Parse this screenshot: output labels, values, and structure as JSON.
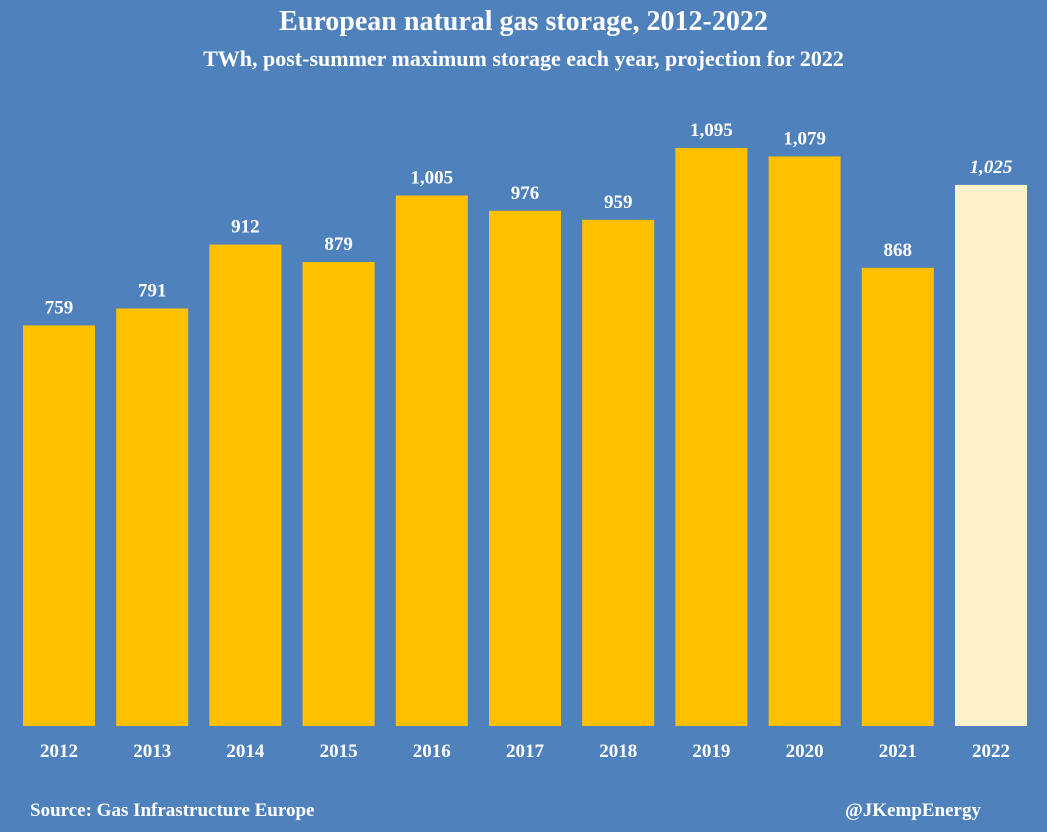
{
  "chart_data": {
    "type": "bar",
    "title": "European natural gas storage, 2012-2022",
    "subtitle": "TWh, post-summer maximum storage each year, projection for 2022",
    "categories": [
      "2012",
      "2013",
      "2014",
      "2015",
      "2016",
      "2017",
      "2018",
      "2019",
      "2020",
      "2021",
      "2022"
    ],
    "values": [
      759,
      791,
      912,
      879,
      1005,
      976,
      959,
      1095,
      1079,
      868,
      1025
    ],
    "value_labels": [
      "759",
      "791",
      "912",
      "879",
      "1,005",
      "976",
      "959",
      "1,095",
      "1,079",
      "868",
      "1,025"
    ],
    "projected": [
      false,
      false,
      false,
      false,
      false,
      false,
      false,
      false,
      false,
      false,
      true
    ],
    "ylim": [
      0,
      1095
    ],
    "xlabel": "",
    "ylabel": "",
    "grid": false,
    "colors": {
      "bar": "#ffc000",
      "projection_bar": "#fff2cc",
      "background": "#4f81bd",
      "text": "#ffffff"
    }
  },
  "footer": {
    "source": "Source: Gas Infrastructure Europe",
    "handle": "@JKempEnergy"
  }
}
